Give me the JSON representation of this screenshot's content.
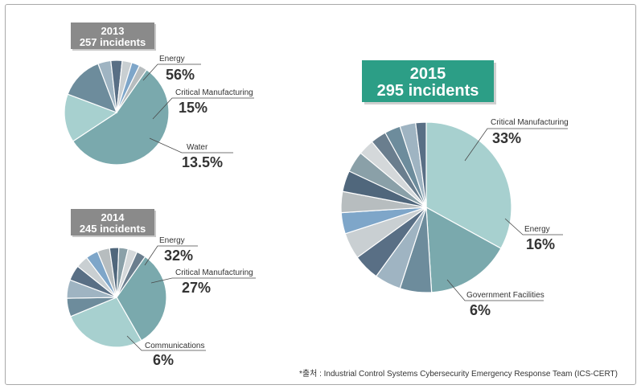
{
  "source_note": "*출처 : Industrial Control Systems Cybersecurity Emergency Response Team (ICS-CERT)",
  "colors": {
    "energy": "#7aa9ad",
    "critical_manufacturing": "#a7d0cf",
    "photo_bg": "#8fc7c9",
    "badge_gray": "#8a8a8a",
    "badge_teal": "#2c9e86",
    "others": [
      "#6d8c9c",
      "#9fb4c2",
      "#596f85",
      "#c9cfd2",
      "#7ea6c9",
      "#b7bdbf",
      "#50677c",
      "#8aa0a8",
      "#d4d8da",
      "#6a7e8e"
    ]
  },
  "chart_data": [
    {
      "type": "pie",
      "title_year": "2013",
      "title_count": "257 incidents",
      "slices": [
        {
          "name": "Energy",
          "pct_label": "56%",
          "value": 56
        },
        {
          "name": "Critical Manufacturing",
          "pct_label": "15%",
          "value": 15
        },
        {
          "name": "Water",
          "pct_label": "13.5%",
          "value": 13.5
        },
        {
          "name": "",
          "value": 4
        },
        {
          "name": "",
          "value": 3.5
        },
        {
          "name": "",
          "value": 3
        },
        {
          "name": "",
          "value": 2.5
        },
        {
          "name": "",
          "value": 2.5
        }
      ]
    },
    {
      "type": "pie",
      "title_year": "2014",
      "title_count": "245 incidents",
      "slices": [
        {
          "name": "Energy",
          "pct_label": "32%",
          "value": 32
        },
        {
          "name": "Critical Manufacturing",
          "pct_label": "27%",
          "value": 27
        },
        {
          "name": "Communications",
          "pct_label": "6%",
          "value": 6
        },
        {
          "name": "",
          "value": 6
        },
        {
          "name": "",
          "value": 5
        },
        {
          "name": "",
          "value": 4
        },
        {
          "name": "",
          "value": 4
        },
        {
          "name": "",
          "value": 4
        },
        {
          "name": "",
          "value": 3
        },
        {
          "name": "",
          "value": 3
        },
        {
          "name": "",
          "value": 3
        },
        {
          "name": "",
          "value": 3
        }
      ]
    },
    {
      "type": "pie",
      "title_year": "2015",
      "title_count": "295 incidents",
      "slices": [
        {
          "name": "Critical Manufacturing",
          "pct_label": "33%",
          "value": 33
        },
        {
          "name": "Energy",
          "pct_label": "16%",
          "value": 16
        },
        {
          "name": "Government Facilities",
          "pct_label": "6%",
          "value": 6
        },
        {
          "name": "",
          "value": 5
        },
        {
          "name": "",
          "value": 5
        },
        {
          "name": "",
          "value": 5
        },
        {
          "name": "",
          "value": 4
        },
        {
          "name": "",
          "value": 4
        },
        {
          "name": "",
          "value": 4
        },
        {
          "name": "",
          "value": 4
        },
        {
          "name": "",
          "value": 3
        },
        {
          "name": "",
          "value": 3
        },
        {
          "name": "",
          "value": 3
        },
        {
          "name": "",
          "value": 3
        },
        {
          "name": "",
          "value": 2
        }
      ]
    }
  ]
}
